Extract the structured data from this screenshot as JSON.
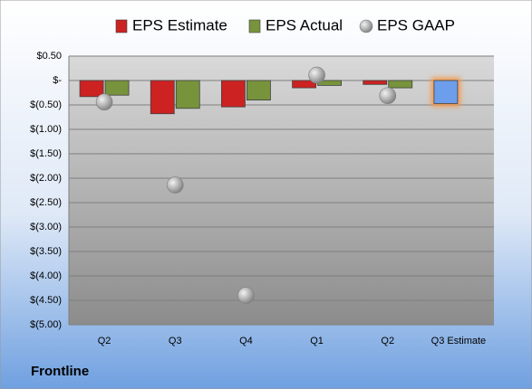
{
  "chart_data": {
    "type": "bar",
    "footer": "Frontline",
    "categories": [
      "Q2",
      "Q3",
      "Q4",
      "Q1",
      "Q2",
      "Q3 Estimate"
    ],
    "series": [
      {
        "name": "EPS Estimate",
        "color": "#cc2222",
        "colors": [
          "#cc2222",
          "#cc2222",
          "#cc2222",
          "#cc2222",
          "#cc2222",
          "#6d9eeb"
        ],
        "values": [
          -0.33,
          -0.68,
          -0.54,
          -0.15,
          -0.08,
          -0.47
        ]
      },
      {
        "name": "EPS Actual",
        "color": "#77933c",
        "values": [
          -0.3,
          -0.57,
          -0.4,
          -0.1,
          -0.15,
          null
        ]
      },
      {
        "name": "EPS GAAP",
        "color": "#a6a6a6",
        "type": "scatter",
        "values": [
          -0.44,
          -2.14,
          -4.4,
          0.11,
          -0.31,
          null
        ]
      }
    ],
    "ylim": [
      -5,
      0.5
    ],
    "yticks": [
      {
        "value": 0.5,
        "label": "$0.50"
      },
      {
        "value": 0,
        "label": "$-"
      },
      {
        "value": -0.5,
        "label": "$(0.50)"
      },
      {
        "value": -1,
        "label": "$(1.00)"
      },
      {
        "value": -1.5,
        "label": "$(1.50)"
      },
      {
        "value": -2,
        "label": "$(2.00)"
      },
      {
        "value": -2.5,
        "label": "$(2.50)"
      },
      {
        "value": -3,
        "label": "$(3.00)"
      },
      {
        "value": -3.5,
        "label": "$(3.50)"
      },
      {
        "value": -4,
        "label": "$(4.00)"
      },
      {
        "value": -4.5,
        "label": "$(4.50)"
      },
      {
        "value": -5,
        "label": "$(5.00)"
      }
    ],
    "grid": true
  }
}
